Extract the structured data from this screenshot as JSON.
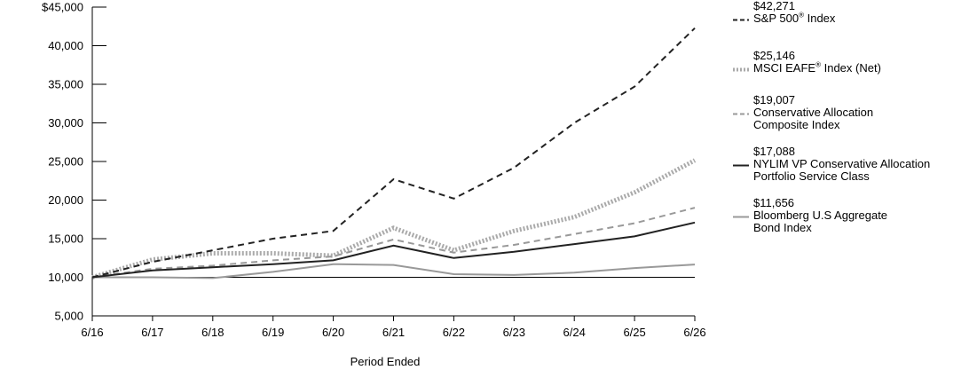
{
  "chart_data": {
    "type": "line",
    "xlabel": "Period Ended",
    "ylabel": "",
    "ylim": [
      5000,
      45000
    ],
    "yticks": [
      "5,000",
      "10,000",
      "15,000",
      "20,000",
      "25,000",
      "30,000",
      "35,000",
      "40,000",
      "$45,000"
    ],
    "categories": [
      "6/16",
      "6/17",
      "6/18",
      "6/19",
      "6/20",
      "6/21",
      "6/22",
      "6/23",
      "6/24",
      "6/25",
      "6/26"
    ],
    "series": [
      {
        "name": "S&P 500® Index",
        "end_label": "$42,271",
        "color": "#222222",
        "style": "dashed",
        "values": [
          10000,
          12000,
          13500,
          15000,
          16000,
          22700,
          20200,
          24200,
          30000,
          34700,
          42271
        ]
      },
      {
        "name": "MSCI EAFE® Index (Net)",
        "end_label": "$25,146",
        "color": "#aaaaaa",
        "style": "dotted-thick",
        "values": [
          10000,
          12300,
          13100,
          13100,
          12800,
          16400,
          13500,
          16000,
          17800,
          21000,
          25146
        ]
      },
      {
        "name": "Conservative Allocation Composite Index",
        "end_label": "$19,007",
        "color": "#999999",
        "style": "dashed",
        "values": [
          10000,
          11100,
          11500,
          12200,
          12700,
          14900,
          13200,
          14200,
          15600,
          17000,
          19007
        ]
      },
      {
        "name": "NYLIM VP Conservative Allocation Portfolio Service Class",
        "end_label": "$17,088",
        "color": "#222222",
        "style": "solid",
        "values": [
          10000,
          10900,
          11300,
          11700,
          12200,
          14100,
          12500,
          13300,
          14300,
          15300,
          17088
        ]
      },
      {
        "name": "Bloomberg U.S Aggregate Bond Index",
        "end_label": "$11,656",
        "color": "#999999",
        "style": "solid",
        "values": [
          10000,
          10000,
          9900,
          10700,
          11700,
          11600,
          10400,
          10300,
          10600,
          11200,
          11656
        ]
      }
    ],
    "legend_placement": "right",
    "grid": false
  },
  "legend": [
    {
      "value": "$42,271",
      "label_main": "S&P 500",
      "label_sup": "®",
      "label_rest": " Index"
    },
    {
      "value": "$25,146",
      "label_main": "MSCI EAFE",
      "label_sup": "®",
      "label_rest": " Index (Net)"
    },
    {
      "value": "$19,007",
      "label_main": "Conservative Allocation Composite Index",
      "label_sup": "",
      "label_rest": ""
    },
    {
      "value": "$17,088",
      "label_main": "NYLIM VP Conservative Allocation Portfolio Service Class",
      "label_sup": "",
      "label_rest": ""
    },
    {
      "value": "$11,656",
      "label_main": "Bloomberg U.S Aggregate Bond Index",
      "label_sup": "",
      "label_rest": ""
    }
  ]
}
